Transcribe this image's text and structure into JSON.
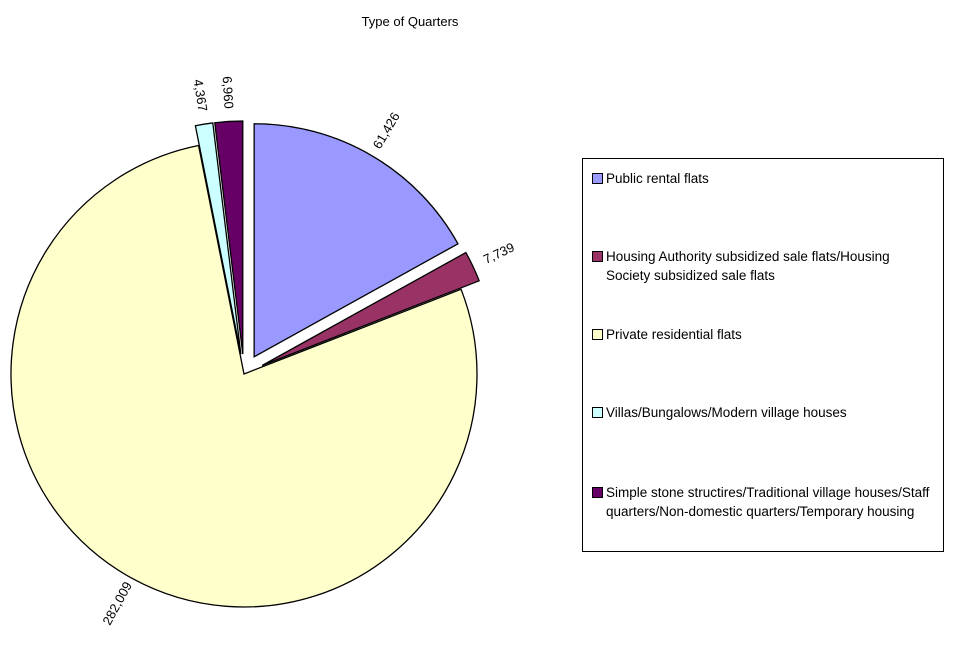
{
  "chart_data": {
    "type": "pie",
    "title": "Type of Quarters",
    "categories": [
      "Public rental flats",
      "Housing Authority subsidized sale flats/Housing Society subsidized sale flats",
      "Private residential flats",
      "Villas/Bungalows/Modern village houses",
      "Simple stone structires/Traditional village houses/Staff quarters/Non-domestic quarters/Temporary housing"
    ],
    "values": [
      61426,
      7739,
      282009,
      4367,
      6960
    ],
    "value_labels": [
      "61,426",
      "7,739",
      "282,009",
      "4,367",
      "6,960"
    ],
    "colors": [
      "#9999ff",
      "#993366",
      "#ffffcc",
      "#ccffff",
      "#660066"
    ],
    "exploded": true,
    "legend_position": "right"
  }
}
